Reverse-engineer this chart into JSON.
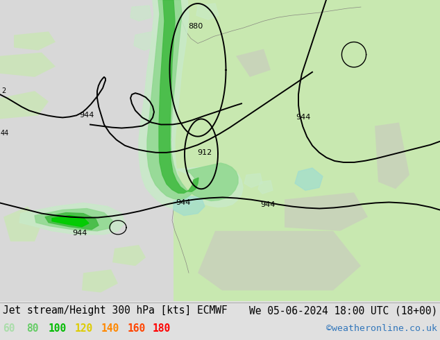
{
  "title_left": "Jet stream/Height 300 hPa [kts] ECMWF",
  "title_right": "We 05-06-2024 18:00 UTC (18+00)",
  "watermark": "©weatheronline.co.uk",
  "legend_values": [
    "60",
    "80",
    "100",
    "120",
    "140",
    "160",
    "180"
  ],
  "legend_colors": [
    "#aaddaa",
    "#66cc66",
    "#00bb00",
    "#ddcc00",
    "#ff8800",
    "#ff4400",
    "#ff0000"
  ],
  "bg_color": "#e0e0e0",
  "ocean_color": "#d8d8d8",
  "land_color_light": "#c8e8b0",
  "land_color_medium": "#b0d898",
  "label_color": "#000000",
  "watermark_color": "#3377bb",
  "title_fontsize": 10.5,
  "legend_fontsize": 10.5,
  "watermark_fontsize": 9.5,
  "figsize": [
    6.34,
    4.9
  ],
  "dpi": 100,
  "jet_color_60": "#c8eac8",
  "jet_color_80": "#90d890",
  "jet_color_100": "#44bb44",
  "jet_color_teal": "#a0ddd0",
  "contour_color": "#000000"
}
